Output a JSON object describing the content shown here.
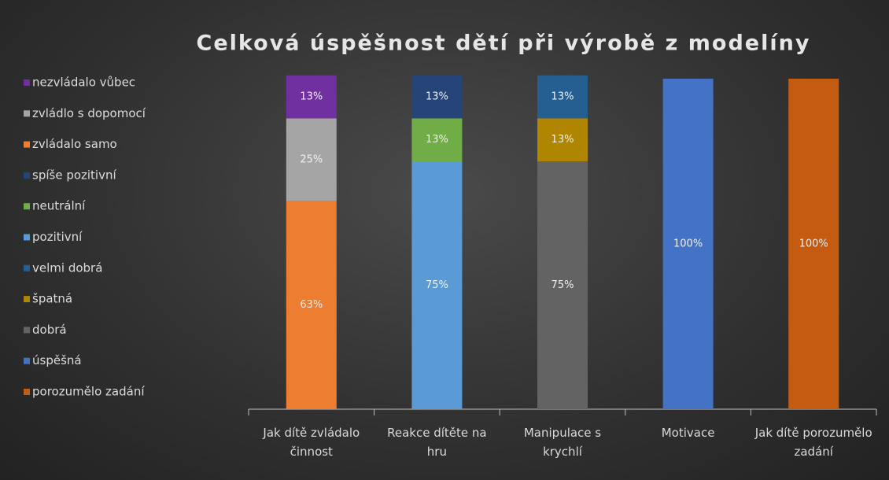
{
  "chart_data": {
    "type": "stacked_bar",
    "title": "Celková úspěšnost dětí při výrobě z modelíny",
    "categories": [
      "Jak dítě zvládalo činnost",
      "Reakce dítěte na hru",
      "Manipulace s krychlí",
      "Motivace",
      "Jak dítě porozumělo zadání"
    ],
    "ylim": [
      0,
      100
    ],
    "legend": "left",
    "series": [
      {
        "name": "nezvládalo vůbec",
        "color": "#7030a0",
        "values": [
          13,
          null,
          null,
          null,
          null
        ],
        "value_labels": [
          "13%",
          null,
          null,
          null,
          null
        ]
      },
      {
        "name": "zvládlo s dopomocí",
        "color": "#a5a5a5",
        "values": [
          25,
          null,
          null,
          null,
          null
        ],
        "value_labels": [
          "25%",
          null,
          null,
          null,
          null
        ]
      },
      {
        "name": " zvládalo samo",
        "color": "#ed7d31",
        "values": [
          63,
          null,
          null,
          null,
          null
        ],
        "value_labels": [
          "63%",
          null,
          null,
          null,
          null
        ]
      },
      {
        "name": "spíše pozitivní",
        "color": "#264478",
        "values": [
          null,
          13,
          null,
          null,
          null
        ],
        "value_labels": [
          null,
          "13%",
          null,
          null,
          null
        ]
      },
      {
        "name": "neutrální",
        "color": "#70ad47",
        "values": [
          null,
          13,
          null,
          null,
          null
        ],
        "value_labels": [
          null,
          "13%",
          null,
          null,
          null
        ]
      },
      {
        "name": "pozitivní",
        "color": "#5b9bd5",
        "values": [
          null,
          75,
          null,
          null,
          null
        ],
        "value_labels": [
          null,
          "75%",
          null,
          null,
          null
        ]
      },
      {
        "name": "velmi dobrá",
        "color": "#255e91",
        "values": [
          null,
          null,
          13,
          null,
          null
        ],
        "value_labels": [
          null,
          null,
          "13%",
          null,
          null
        ]
      },
      {
        "name": "špatná",
        "color": "#b08600",
        "values": [
          null,
          null,
          13,
          null,
          null
        ],
        "value_labels": [
          null,
          null,
          "13%",
          null,
          null
        ]
      },
      {
        "name": "dobrá",
        "color": "#636363",
        "values": [
          null,
          null,
          75,
          null,
          null
        ],
        "value_labels": [
          null,
          null,
          "75%",
          null,
          null
        ]
      },
      {
        "name": "úspěšná",
        "color": "#4472c4",
        "values": [
          null,
          null,
          null,
          100,
          null
        ],
        "value_labels": [
          null,
          null,
          null,
          "100%",
          null
        ]
      },
      {
        "name": "porozumělo zadání",
        "color": "#c55a11",
        "values": [
          null,
          null,
          null,
          null,
          100
        ],
        "value_labels": [
          null,
          null,
          null,
          null,
          "100%"
        ]
      }
    ]
  }
}
